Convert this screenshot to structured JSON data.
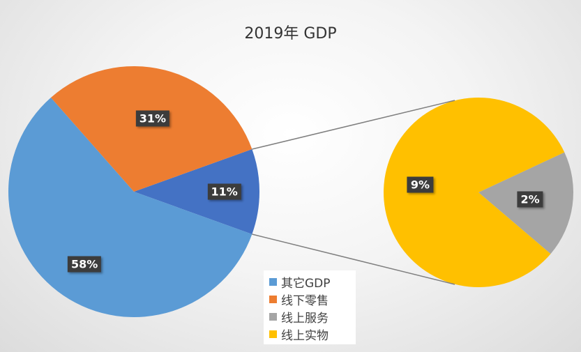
{
  "chart_data": {
    "type": "pie",
    "subtype": "pie-of-pie",
    "title": "2019年 GDP",
    "slices": [
      {
        "label": "其它GDP",
        "value": 58,
        "display": "58%",
        "color": "#5b9bd5",
        "chart": "main"
      },
      {
        "label": "线下零售",
        "value": 31,
        "display": "31%",
        "color": "#ed7d31",
        "chart": "main"
      },
      {
        "label": "线上服务",
        "value": 2,
        "display": "2%",
        "color": "#a5a5a5",
        "chart": "secondary"
      },
      {
        "label": "线上实物",
        "value": 9,
        "display": "9%",
        "color": "#ffc000",
        "chart": "secondary"
      }
    ],
    "aggregate_slice": {
      "label": "",
      "value": 11,
      "display": "11%",
      "color": "#4472c4"
    },
    "legend": {
      "placement": "bottom-center",
      "entries": [
        {
          "label": "其它GDP",
          "color": "#5b9bd5"
        },
        {
          "label": "线下零售",
          "color": "#ed7d31"
        },
        {
          "label": "线上服务",
          "color": "#a5a5a5"
        },
        {
          "label": "线上实物",
          "color": "#ffc000"
        }
      ]
    }
  }
}
